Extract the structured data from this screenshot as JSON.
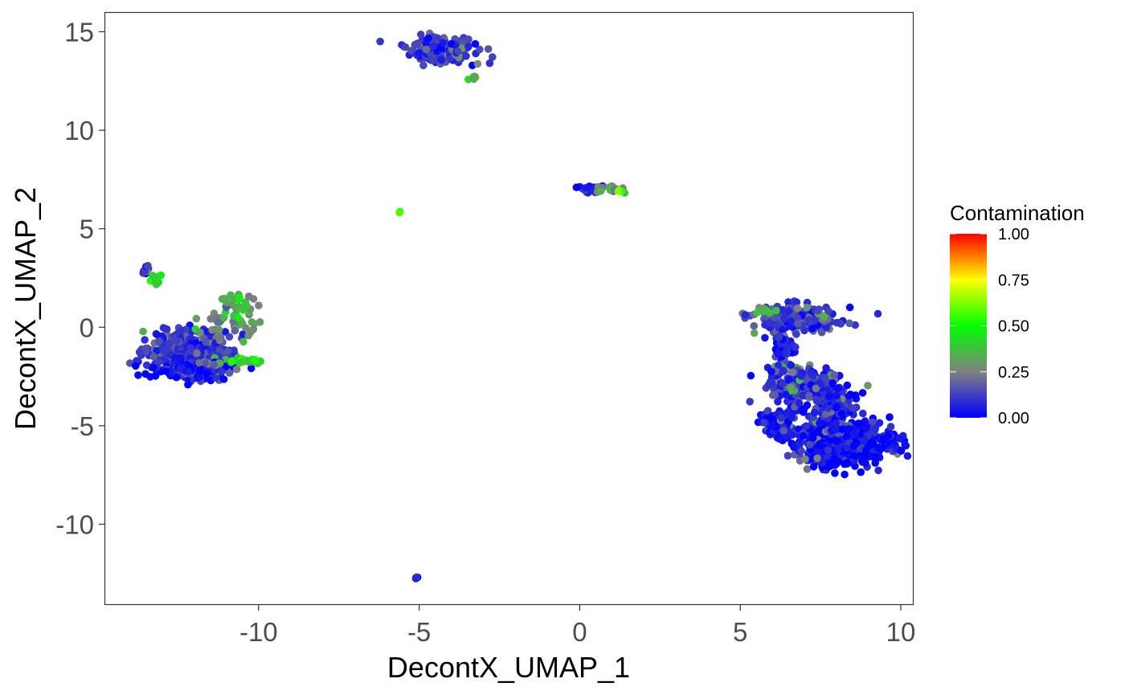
{
  "chart_data": {
    "type": "scatter",
    "xlabel": "DecontX_UMAP_1",
    "ylabel": "DecontX_UMAP_2",
    "xlim": [
      -14.8,
      10.4
    ],
    "ylim": [
      -14.1,
      16
    ],
    "xticks": [
      -10,
      -5,
      0,
      5,
      10
    ],
    "yticks": [
      -10,
      -5,
      0,
      5,
      10,
      15
    ],
    "xtick_labels": [
      "-10",
      "-5",
      "0",
      "5",
      "10"
    ],
    "ytick_labels": [
      "-10",
      "-5",
      "0",
      "5",
      "10",
      "15"
    ],
    "grid": false,
    "legend": {
      "title": "Contamination",
      "placement": "right",
      "ticks": [
        0.0,
        0.25,
        0.5,
        0.75,
        1.0
      ],
      "tick_labels": [
        "0.00",
        "0.25",
        "0.50",
        "0.75",
        "1.00"
      ],
      "colors": [
        "#0000ff",
        "#808080",
        "#00ff00",
        "#ffff00",
        "#ff0000"
      ]
    },
    "clusters": [
      {
        "cx": -4.3,
        "cy": 14.1,
        "sx": 0.55,
        "sy": 0.35,
        "n": 150,
        "contamination": 0.1
      },
      {
        "cx": -3.3,
        "cy": 12.7,
        "sx": 0.05,
        "sy": 0.08,
        "n": 6,
        "contamination": 0.35
      },
      {
        "cx": 0.4,
        "cy": 7.0,
        "sx": 0.15,
        "sy": 0.08,
        "n": 20,
        "contamination": 0.05
      },
      {
        "cx": 0.95,
        "cy": 7.0,
        "sx": 0.2,
        "sy": 0.07,
        "n": 18,
        "contamination": 0.28
      },
      {
        "cx": 1.25,
        "cy": 6.9,
        "sx": 0.05,
        "sy": 0.05,
        "n": 5,
        "contamination": 0.62
      },
      {
        "cx": -5.6,
        "cy": 5.85,
        "sx": 0.03,
        "sy": 0.03,
        "n": 3,
        "contamination": 0.55
      },
      {
        "cx": -5.1,
        "cy": -12.7,
        "sx": 0.04,
        "sy": 0.04,
        "n": 4,
        "contamination": 0.0
      },
      {
        "cx": -13.5,
        "cy": 2.9,
        "sx": 0.1,
        "sy": 0.15,
        "n": 12,
        "contamination": 0.12
      },
      {
        "cx": -13.2,
        "cy": 2.4,
        "sx": 0.1,
        "sy": 0.15,
        "n": 10,
        "contamination": 0.4
      },
      {
        "cx": -12.1,
        "cy": -1.3,
        "sx": 0.65,
        "sy": 0.5,
        "n": 500,
        "contamination": 0.1
      },
      {
        "cx": -12.1,
        "cy": -2.2,
        "sx": 0.55,
        "sy": 0.2,
        "n": 160,
        "contamination": 0.02
      },
      {
        "cx": -11.0,
        "cy": 0.3,
        "sx": 0.5,
        "sy": 0.4,
        "n": 40,
        "contamination": 0.26
      },
      {
        "cx": -10.6,
        "cy": 1.1,
        "sx": 0.3,
        "sy": 0.25,
        "n": 30,
        "contamination": 0.36
      },
      {
        "cx": -10.3,
        "cy": -1.7,
        "sx": 0.35,
        "sy": 0.08,
        "n": 20,
        "contamination": 0.42
      },
      {
        "cx": -11.5,
        "cy": -1.85,
        "sx": 0.2,
        "sy": 0.08,
        "n": 8,
        "contamination": 0.32
      },
      {
        "cx": 6.8,
        "cy": 0.4,
        "sx": 0.65,
        "sy": 0.35,
        "n": 250,
        "contamination": 0.11
      },
      {
        "cx": 5.8,
        "cy": 0.85,
        "sx": 0.2,
        "sy": 0.08,
        "n": 12,
        "contamination": 0.3
      },
      {
        "cx": 6.4,
        "cy": -1.1,
        "sx": 0.15,
        "sy": 0.45,
        "n": 60,
        "contamination": 0.05
      },
      {
        "cx": 6.6,
        "cy": -2.1,
        "sx": 0.3,
        "sy": 0.08,
        "n": 15,
        "contamination": 0.32
      },
      {
        "cx": 7.0,
        "cy": -3.0,
        "sx": 0.55,
        "sy": 0.45,
        "n": 200,
        "contamination": 0.1
      },
      {
        "cx": 8.2,
        "cy": -5.9,
        "sx": 0.75,
        "sy": 0.55,
        "n": 650,
        "contamination": 0.03
      },
      {
        "cx": 6.1,
        "cy": -4.9,
        "sx": 0.25,
        "sy": 0.35,
        "n": 70,
        "contamination": 0.03
      },
      {
        "cx": 6.7,
        "cy": -4.1,
        "sx": 0.1,
        "sy": 0.12,
        "n": 8,
        "contamination": 0.02
      },
      {
        "cx": 7.8,
        "cy": -4.0,
        "sx": 0.4,
        "sy": 0.5,
        "n": 150,
        "contamination": 0.05
      }
    ]
  }
}
